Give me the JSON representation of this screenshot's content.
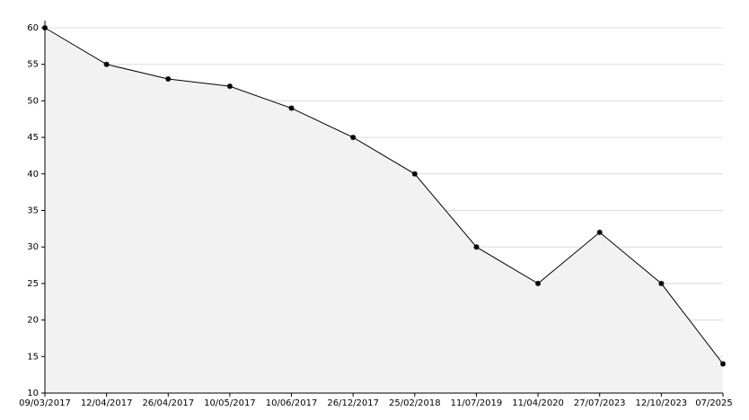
{
  "chart_data": {
    "type": "area",
    "categories": [
      "09/03/2017",
      "12/04/2017",
      "26/04/2017",
      "10/05/2017",
      "10/06/2017",
      "26/12/2017",
      "25/02/2018",
      "11/07/2019",
      "11/04/2020",
      "27/07/2023",
      "12/10/2023",
      "07/2025"
    ],
    "values": [
      60,
      55,
      53,
      52,
      49,
      45,
      40,
      30,
      25,
      32,
      25,
      14
    ],
    "color": "#000000",
    "fill": "#f2f2f2",
    "ylim": [
      10,
      60
    ],
    "yticks": [
      10,
      15,
      20,
      25,
      30,
      35,
      40,
      45,
      50,
      55,
      60
    ],
    "grid": true
  }
}
